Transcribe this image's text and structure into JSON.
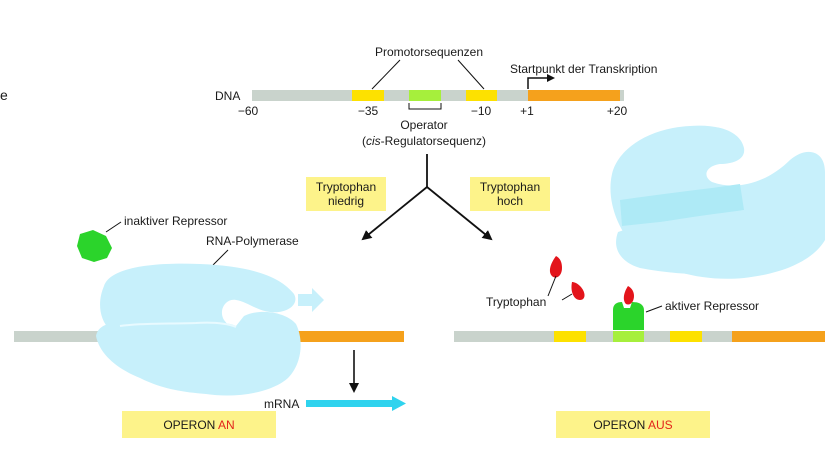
{
  "edge_fragment": "e",
  "top": {
    "promoter_label": "Promotorsequenzen",
    "start_label": "Startpunkt der Transkription",
    "dna_label": "DNA",
    "ticks": [
      "−60",
      "−35",
      "−10",
      "+1",
      "+20"
    ],
    "operator_label": "Operator",
    "cis_prefix": "cis",
    "cis_suffix": "-Regulatorsequenz)"
  },
  "branch_left": {
    "line1": "Tryptophan",
    "line2": "niedrig"
  },
  "branch_right": {
    "line1": "Tryptophan",
    "line2": "hoch"
  },
  "left_panel": {
    "inactive_repressor_label": "inaktiver Repressor",
    "polymerase_label": "RNA-Polymerase",
    "mrna_label": "mRNA",
    "operon_prefix": "OPERON ",
    "operon_state": "AN"
  },
  "right_panel": {
    "tryptophan_label": "Tryptophan",
    "active_repressor_label": "aktiver Repressor",
    "operon_prefix": "OPERON ",
    "operon_state": "AUS"
  },
  "colors": {
    "dna_gray": "#c9d3cc",
    "promoter_yellow": "#fde100",
    "operator_green": "#a6ef3c",
    "gene_orange": "#f5a11c",
    "polymerase_blue": "#c7f0fb",
    "repressor_green": "#2bd42b",
    "label_box_yellow": "#fdf38a",
    "mrna_cyan": "#2fd3ee",
    "tryptophan_red": "#e3141b",
    "state_red": "#e3241b"
  }
}
